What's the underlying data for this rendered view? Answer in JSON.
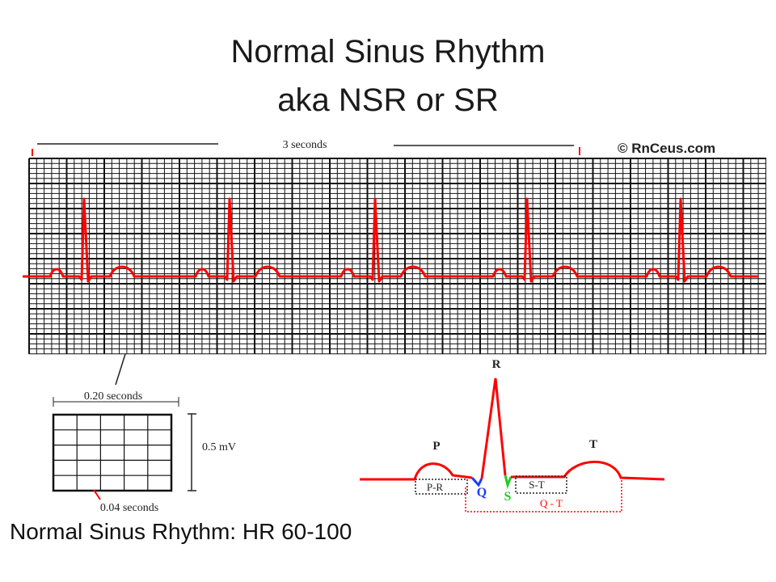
{
  "slide": {
    "title": "Normal Sinus Rhythm",
    "subtitle": "aka NSR or SR",
    "caption": "Normal Sinus Rhythm: HR 60-100"
  },
  "ecg_strip": {
    "duration_label": "3 seconds",
    "copyright": "© RnCeus.com",
    "trace_color": "#ff0000",
    "grid_color": "#111111"
  },
  "small_box": {
    "width_label": "0.20 seconds",
    "height_label": "0.5 mV",
    "small_square_label": "0.04 seconds"
  },
  "complex": {
    "labels": {
      "p": "P",
      "q": "Q",
      "r": "R",
      "s": "S",
      "t": "T",
      "pr": "P-R",
      "st": "S-T",
      "qt": "Q - T"
    },
    "colors": {
      "trace": "#ff0000",
      "q": "#1a3cff",
      "s": "#22cc22"
    }
  }
}
